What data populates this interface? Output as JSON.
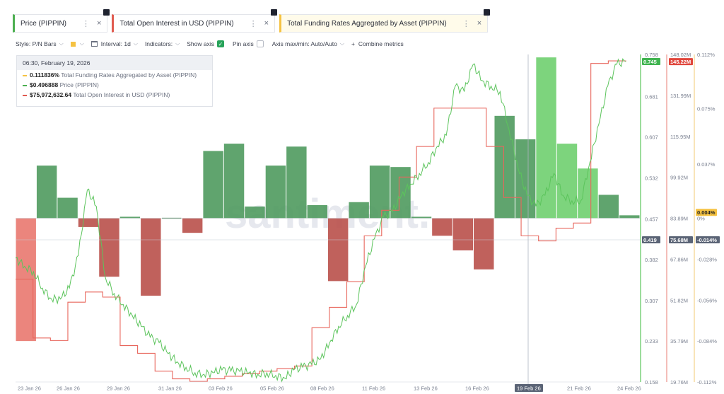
{
  "tabs": [
    {
      "label": "Price (PIPPIN)",
      "color": "#4caf50"
    },
    {
      "label": "Total Open Interest in USD (PIPPIN)",
      "color": "#e05a4f"
    },
    {
      "label": "Total Funding Rates Aggregated by Asset (PIPPIN)",
      "color": "#f5c242"
    }
  ],
  "toolbar": {
    "style": "Style: P/N Bars",
    "interval": "Interval: 1d",
    "indicators": "Indicators:",
    "show_axis": "Show axis",
    "pin_axis": "Pin axis",
    "axis_maxmin": "Axis max/min: Auto/Auto",
    "combine": "Combine metrics"
  },
  "tooltip": {
    "date": "06:30, February 19, 2026",
    "rows": [
      {
        "value": "0.111836%",
        "name": "Total Funding Rates Aggregated by Asset (PIPPIN)",
        "color": "#f5c242"
      },
      {
        "value": "$0.496888",
        "name": "Price (PIPPIN)",
        "color": "#4caf50"
      },
      {
        "value": "$75,972,632.64",
        "name": "Total Open Interest in USD (PIPPIN)",
        "color": "#e05a4f"
      }
    ]
  },
  "watermark": "santiment.",
  "colors": {
    "price": "#5cc45c",
    "oi": "#e8665c",
    "funding": "#f5c242",
    "pos": "#3d8a4f",
    "neg": "#c24a45",
    "cursor": "#5b6476"
  },
  "chart_data": {
    "type": "bar",
    "x_ticks": [
      "23 Jan 26",
      "26 Jan 26",
      "29 Jan 26",
      "31 Jan 26",
      "03 Feb 26",
      "05 Feb 26",
      "08 Feb 26",
      "11 Feb 26",
      "13 Feb 26",
      "16 Feb 26",
      "19 Feb 26",
      "21 Feb 26",
      "24 Feb 26"
    ],
    "cursor_label": "19 Feb 26",
    "axes": {
      "price": {
        "ticks": [
          "0.758",
          "0.681",
          "0.607",
          "0.532",
          "0.457",
          "0.382",
          "0.307",
          "0.233",
          "0.158"
        ],
        "min": 0.158,
        "max": 0.758,
        "current": "0.745",
        "cursor": "0.419"
      },
      "oi": {
        "ticks": [
          "148.02M",
          "131.99M",
          "115.95M",
          "99.92M",
          "83.89M",
          "67.86M",
          "51.82M",
          "35.79M",
          "19.76M"
        ],
        "min": 19.76,
        "max": 148.02,
        "current": "145.22M",
        "cursor": "75.68M"
      },
      "funding": {
        "ticks": [
          "0.112%",
          "0.075%",
          "0.037%",
          "0%",
          "-0.028%",
          "-0.056%",
          "-0.084%",
          "-0.112%"
        ],
        "min": -0.112,
        "max": 0.112,
        "current": "0.004%",
        "cursor": "-0.014%"
      }
    },
    "series": [
      {
        "name": "Total Funding Rates Aggregated by Asset (PIPPIN)",
        "type": "bar",
        "values": [
          -0.084,
          0.036,
          0.014,
          -0.006,
          -0.04,
          0.001,
          -0.053,
          0,
          -0.01,
          0.046,
          0.051,
          0.008,
          0.036,
          0.049,
          0.009,
          -0.043,
          0.011,
          0.036,
          0.035,
          0.001,
          -0.012,
          -0.022,
          -0.035,
          0.07,
          0.054,
          0.11,
          0.051,
          0.034,
          0.016,
          0.002
        ]
      },
      {
        "name": "Price (PIPPIN)",
        "type": "line",
        "values": [
          0.385,
          0.37,
          0.36,
          0.33,
          0.31,
          0.31,
          0.33,
          0.39,
          0.51,
          0.48,
          0.35,
          0.32,
          0.3,
          0.28,
          0.26,
          0.24,
          0.23,
          0.21,
          0.195,
          0.185,
          0.175,
          0.172,
          0.175,
          0.18,
          0.178,
          0.177,
          0.175,
          0.172,
          0.175,
          0.17,
          0.165,
          0.18,
          0.185,
          0.19,
          0.2,
          0.23,
          0.26,
          0.28,
          0.3,
          0.37,
          0.42,
          0.46,
          0.47,
          0.5,
          0.52,
          0.54,
          0.56,
          0.59,
          0.61,
          0.7,
          0.69,
          0.74,
          0.71,
          0.7,
          0.69,
          0.62,
          0.55,
          0.5,
          0.48,
          0.5,
          0.54,
          0.5,
          0.49,
          0.49,
          0.56,
          0.63,
          0.7,
          0.74,
          0.745
        ]
      },
      {
        "name": "Total Open Interest in USD (PIPPIN)",
        "type": "line",
        "values": [
          60.0,
          37.0,
          36.0,
          51.0,
          55.0,
          53.0,
          34.0,
          31.0,
          24.0,
          21.0,
          20.0,
          21.0,
          22.0,
          23.0,
          24.0,
          25.0,
          26.0,
          41.0,
          49.0,
          59.0,
          77.0,
          87.0,
          100.0,
          112.0,
          127.0,
          127.0,
          127.0,
          112.0,
          92.0,
          77.0,
          75.0,
          80.0,
          82.0,
          144.5,
          145.5,
          145.22
        ]
      }
    ]
  }
}
